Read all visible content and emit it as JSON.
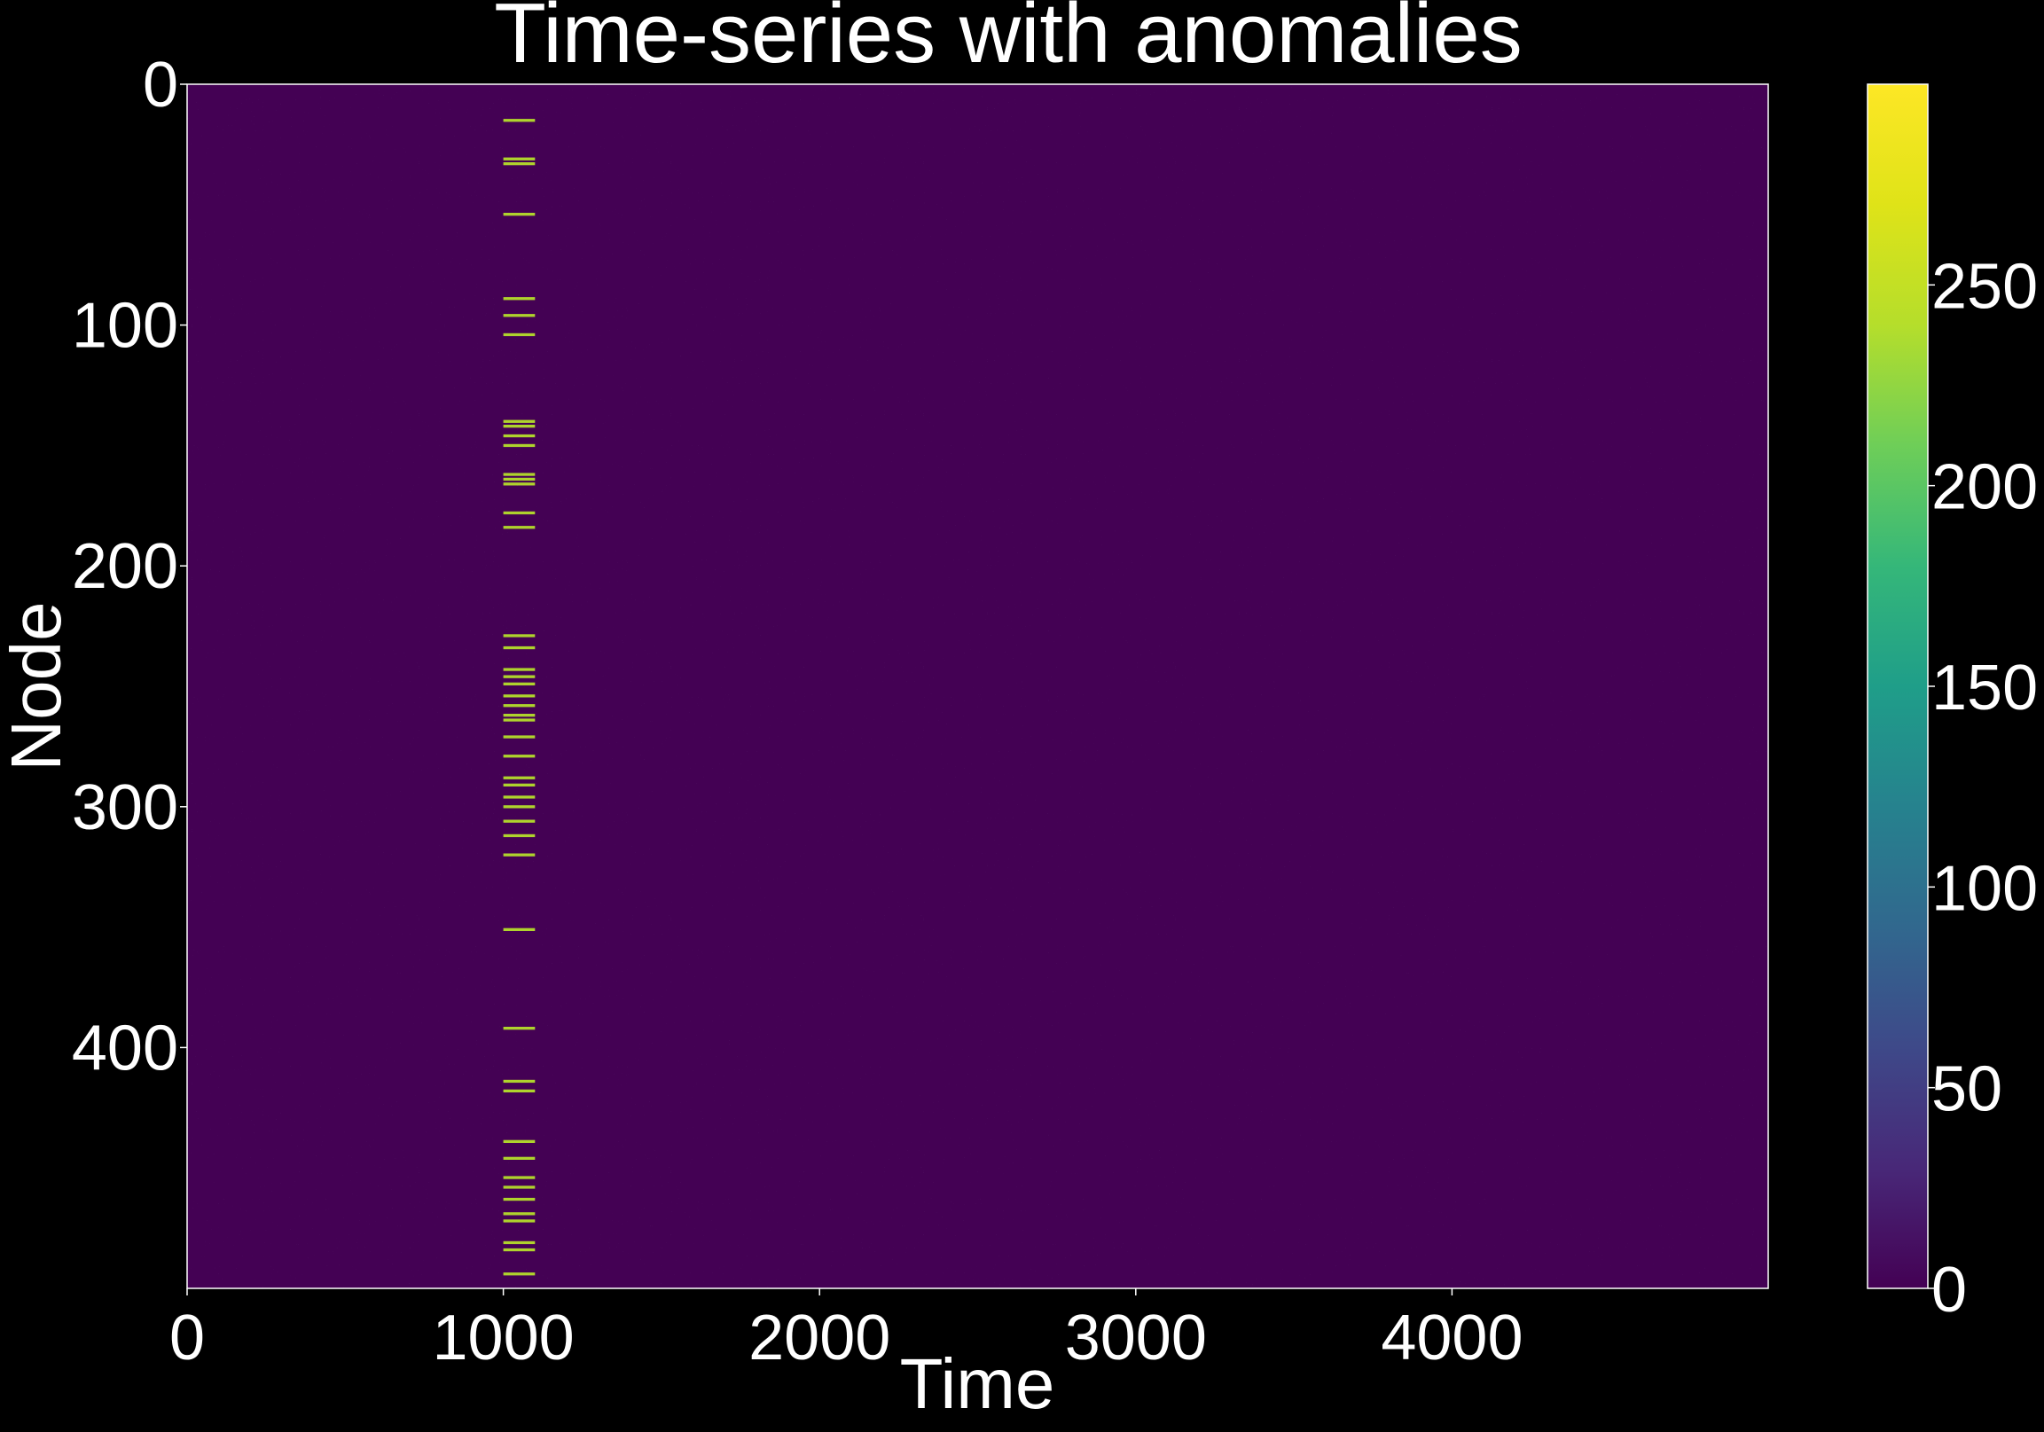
{
  "chart_data": {
    "type": "heatmap",
    "title": "Time-series with anomalies",
    "xlabel": "Time",
    "ylabel": "Node",
    "xlim": [
      0,
      5000
    ],
    "ylim": [
      500,
      0
    ],
    "x_ticks": [
      0,
      1000,
      2000,
      3000,
      4000
    ],
    "y_ticks": [
      0,
      100,
      200,
      300,
      400
    ],
    "colorbar": {
      "colormap": "viridis",
      "range": [
        0,
        300
      ],
      "ticks": [
        0,
        50,
        100,
        150,
        200,
        250
      ]
    },
    "background_value": 0,
    "anomaly_window": {
      "time_start": 1000,
      "time_end": 1100,
      "value": 280
    },
    "anomaly_nodes": [
      15,
      31,
      33,
      54,
      89,
      96,
      104,
      140,
      142,
      146,
      150,
      162,
      164,
      166,
      178,
      184,
      229,
      234,
      243,
      246,
      249,
      254,
      258,
      262,
      264,
      271,
      279,
      288,
      291,
      296,
      300,
      306,
      312,
      320,
      351,
      392,
      414,
      418,
      439,
      446,
      454,
      458,
      463,
      469,
      472,
      481,
      484,
      494
    ],
    "colors": {
      "background": "#000000",
      "text": "#ffffff",
      "axes_frame": "#ffffff"
    }
  }
}
